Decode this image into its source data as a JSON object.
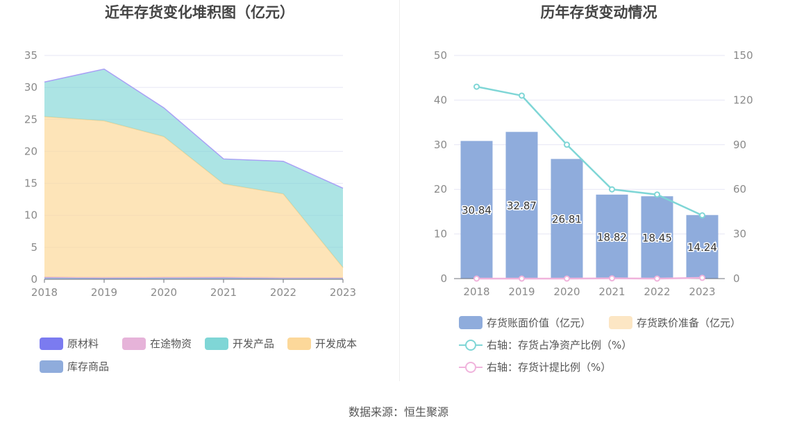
{
  "left_chart": {
    "title": "近年存货变化堆积图（亿元）"
  },
  "right_chart": {
    "title": "历年存货变动情况"
  },
  "source": "数据来源：恒生聚源",
  "colors": {
    "raw_material": "#7b7bf0",
    "in_transit": "#e6b3d9",
    "finished_products": "#7fd6d6",
    "development_cost": "#fcd89a",
    "inventory_goods": "#8facdc",
    "bar": "#8facdc",
    "impairment": "#fce6c4",
    "ratio_line": "#7fd6d6",
    "provision_line": "#f0b3dc",
    "grid": "#e6e6f5"
  },
  "chart_data": [
    {
      "type": "area",
      "stacked": true,
      "title": "近年存货变化堆积图（亿元）",
      "categories": [
        "2018",
        "2019",
        "2020",
        "2021",
        "2022",
        "2023"
      ],
      "ylim": [
        0,
        35
      ],
      "yticks": [
        0,
        5,
        10,
        15,
        20,
        25,
        30,
        35
      ],
      "grid": true,
      "legend_position": "bottom",
      "series": [
        {
          "name": "原材料",
          "color_key": "raw_material",
          "values": [
            0.1,
            0.1,
            0.1,
            0.1,
            0.05,
            0.05
          ]
        },
        {
          "name": "在途物资",
          "color_key": "in_transit",
          "values": [
            0,
            0,
            0,
            0,
            0,
            0
          ]
        },
        {
          "name": "开发产品",
          "color_key": "finished_products",
          "values": [
            5.4,
            8.1,
            4.5,
            3.9,
            5.1,
            12.4
          ]
        },
        {
          "name": "开发成本",
          "color_key": "development_cost",
          "values": [
            25.1,
            24.5,
            22.0,
            14.6,
            13.1,
            1.6
          ]
        },
        {
          "name": "库存商品",
          "color_key": "inventory_goods",
          "values": [
            0.24,
            0.17,
            0.21,
            0.22,
            0.2,
            0.19
          ]
        }
      ]
    },
    {
      "type": "bar",
      "title": "历年存货变动情况",
      "categories": [
        "2018",
        "2019",
        "2020",
        "2021",
        "2022",
        "2023"
      ],
      "ylim": [
        0,
        50
      ],
      "yticks": [
        0,
        10,
        20,
        30,
        40,
        50
      ],
      "y2lim": [
        0,
        150
      ],
      "y2ticks": [
        0,
        30,
        60,
        90,
        120,
        150
      ],
      "grid": true,
      "legend_position": "bottom",
      "series": [
        {
          "name": "存货账面价值（亿元）",
          "type": "bar",
          "axis": "left",
          "color_key": "bar",
          "values": [
            30.84,
            32.87,
            26.81,
            18.82,
            18.45,
            14.24
          ],
          "labels": [
            "30.84",
            "32.87",
            "26.81",
            "18.82",
            "18.45",
            "14.24"
          ]
        },
        {
          "name": "存货跌价准备（亿元）",
          "type": "bar",
          "axis": "left",
          "color_key": "impairment",
          "values": [
            0,
            0,
            0,
            0,
            0,
            0
          ]
        },
        {
          "name": "右轴：存货占净资产比例（%）",
          "type": "line",
          "axis": "right",
          "color_key": "ratio_line",
          "values": [
            129,
            123,
            90,
            60,
            56.5,
            42.5
          ]
        },
        {
          "name": "右轴：存货计提比例（%）",
          "type": "line",
          "axis": "right",
          "color_key": "provision_line",
          "values": [
            0,
            0,
            0,
            0.2,
            0,
            0.5
          ]
        }
      ]
    }
  ]
}
